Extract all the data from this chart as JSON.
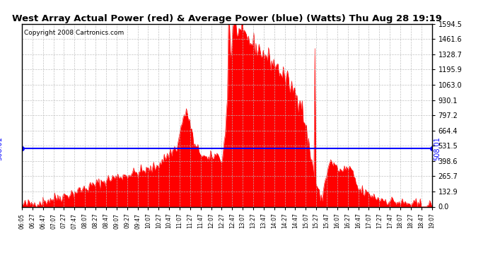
{
  "title": "West Array Actual Power (red) & Average Power (blue) (Watts) Thu Aug 28 19:19",
  "copyright": "Copyright 2008 Cartronics.com",
  "average_power": 508.01,
  "y_ticks": [
    0.0,
    132.9,
    265.7,
    398.6,
    531.5,
    664.4,
    797.2,
    930.1,
    1063.0,
    1195.9,
    1328.7,
    1461.6,
    1594.5
  ],
  "y_max": 1594.5,
  "fill_color": "#FF0000",
  "line_color": "#0000FF",
  "avg_label": "508.01",
  "title_fontsize": 9.5,
  "copyright_fontsize": 6.5,
  "avg_label_fontsize": 7,
  "x_labels": [
    "06:05",
    "06:27",
    "06:47",
    "07:07",
    "07:27",
    "07:47",
    "08:07",
    "08:27",
    "08:47",
    "09:07",
    "09:27",
    "09:47",
    "10:07",
    "10:27",
    "10:47",
    "11:07",
    "11:27",
    "11:47",
    "12:07",
    "12:27",
    "12:47",
    "13:07",
    "13:27",
    "13:47",
    "14:07",
    "14:27",
    "14:47",
    "15:07",
    "15:27",
    "15:47",
    "16:07",
    "16:27",
    "16:47",
    "17:07",
    "17:27",
    "17:47",
    "18:07",
    "18:27",
    "18:47",
    "19:07"
  ],
  "bg_color": "#ffffff",
  "grid_color": "#bbbbbb"
}
